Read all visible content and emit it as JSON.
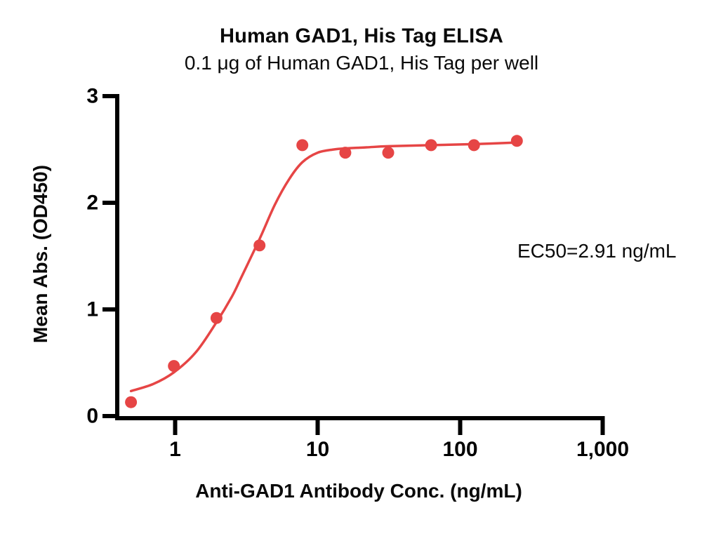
{
  "chart_data": {
    "type": "scatter",
    "title": "Human GAD1, His Tag ELISA",
    "subtitle": "0.1 μg of Human GAD1, His Tag per well",
    "xlabel": "Anti-GAD1 Antibody Conc. (ng/mL)",
    "ylabel": "Mean Abs. (OD450)",
    "annotation": "EC50=2.91 ng/mL",
    "x_scale": "log10",
    "xlim": [
      0.39,
      1030
    ],
    "ylim": [
      0,
      3
    ],
    "x_ticks": [
      1,
      10,
      100,
      1000
    ],
    "x_tick_labels": [
      "1",
      "10",
      "100",
      "1,000"
    ],
    "y_ticks": [
      0,
      1,
      2,
      3
    ],
    "y_tick_labels": [
      "0",
      "1",
      "2",
      "3"
    ],
    "grid": false,
    "legend": false,
    "colors": {
      "series": "#e64545",
      "axis": "#000000",
      "background": "#ffffff"
    },
    "series": [
      {
        "name": "Human GAD1, His Tag ELISA data",
        "kind": "points",
        "points": [
          [
            0.49,
            0.13
          ],
          [
            0.98,
            0.47
          ],
          [
            1.95,
            0.92
          ],
          [
            3.91,
            1.6
          ],
          [
            7.81,
            2.54
          ],
          [
            15.63,
            2.47
          ],
          [
            31.25,
            2.47
          ],
          [
            62.5,
            2.54
          ],
          [
            125,
            2.54
          ],
          [
            250,
            2.58
          ]
        ]
      },
      {
        "name": "4PL fitted curve (EC50 = 2.91 ng/mL)",
        "kind": "line",
        "points": [
          [
            0.49,
            0.235
          ],
          [
            0.7,
            0.3
          ],
          [
            0.98,
            0.41
          ],
          [
            1.4,
            0.6
          ],
          [
            1.95,
            0.88
          ],
          [
            2.5,
            1.12
          ],
          [
            2.91,
            1.3
          ],
          [
            3.91,
            1.66
          ],
          [
            5.0,
            1.98
          ],
          [
            6.3,
            2.22
          ],
          [
            7.81,
            2.38
          ],
          [
            10,
            2.47
          ],
          [
            13,
            2.5
          ],
          [
            15.63,
            2.51
          ],
          [
            22,
            2.52
          ],
          [
            31.25,
            2.53
          ],
          [
            62.5,
            2.54
          ],
          [
            125,
            2.55
          ],
          [
            250,
            2.565
          ]
        ]
      }
    ]
  }
}
